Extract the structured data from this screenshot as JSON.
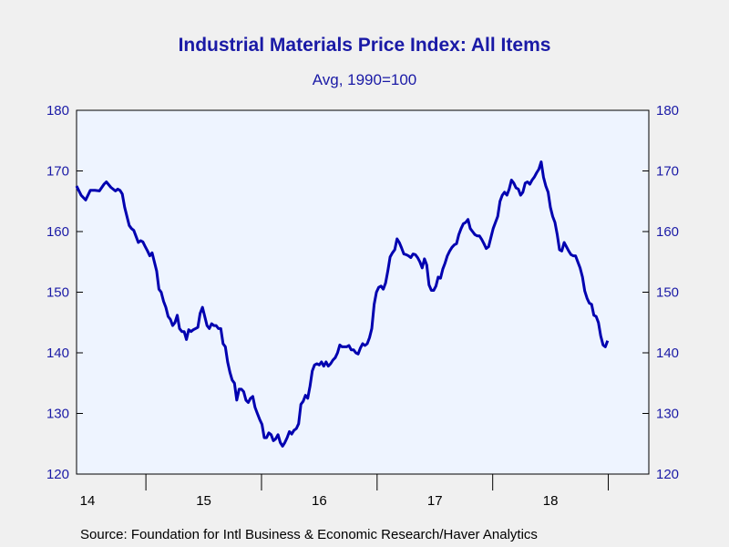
{
  "chart_data": {
    "type": "line",
    "title": "Industrial Materials Price Index: All Items",
    "subtitle": "Avg, 1990=100",
    "ylim": [
      120,
      180
    ],
    "yticks": [
      120,
      130,
      140,
      150,
      160,
      170,
      180
    ],
    "x_tick_labels": [
      "14",
      "15",
      "16",
      "17",
      "18"
    ],
    "xlim": [
      0,
      250
    ],
    "grid": false,
    "line_color": "#0000b0",
    "series": [
      {
        "values": [
          [
            0,
            167.5
          ],
          [
            2,
            166
          ],
          [
            4,
            165.2
          ],
          [
            6,
            166.8
          ],
          [
            8,
            166.8
          ],
          [
            10,
            166.7
          ],
          [
            12,
            167.8
          ],
          [
            13,
            168.2
          ],
          [
            15,
            167.3
          ],
          [
            17,
            166.7
          ],
          [
            18,
            167
          ],
          [
            19,
            166.8
          ],
          [
            20,
            166.2
          ],
          [
            21,
            164
          ],
          [
            22,
            162.5
          ],
          [
            23,
            161
          ],
          [
            24,
            160.5
          ],
          [
            25,
            160.2
          ],
          [
            26,
            159.2
          ],
          [
            27,
            158.2
          ],
          [
            28,
            158.5
          ],
          [
            29,
            158.3
          ],
          [
            30,
            157.5
          ],
          [
            31,
            156.8
          ],
          [
            32,
            156
          ],
          [
            33,
            156.5
          ],
          [
            34,
            155
          ],
          [
            35,
            153.5
          ],
          [
            36,
            150.5
          ],
          [
            37,
            150
          ],
          [
            38,
            148.5
          ],
          [
            39,
            147.5
          ],
          [
            40,
            146
          ],
          [
            41,
            145.5
          ],
          [
            42,
            144.5
          ],
          [
            43,
            145
          ],
          [
            44,
            146.2
          ],
          [
            45,
            144
          ],
          [
            46,
            143.5
          ],
          [
            47,
            143.5
          ],
          [
            48,
            142.2
          ],
          [
            49,
            143.8
          ],
          [
            50,
            143.5
          ],
          [
            51,
            143.8
          ],
          [
            52,
            144
          ],
          [
            53,
            144.2
          ],
          [
            54,
            146.5
          ],
          [
            55,
            147.5
          ],
          [
            56,
            146
          ],
          [
            57,
            144.5
          ],
          [
            58,
            144
          ],
          [
            59,
            144.8
          ],
          [
            60,
            144.5
          ],
          [
            61,
            144.5
          ],
          [
            62,
            144
          ],
          [
            63,
            144
          ],
          [
            64,
            141.5
          ],
          [
            65,
            141
          ],
          [
            66,
            138.5
          ],
          [
            67,
            136.8
          ],
          [
            68,
            135.5
          ],
          [
            69,
            135
          ],
          [
            70,
            132.2
          ],
          [
            71,
            134
          ],
          [
            72,
            134
          ],
          [
            73,
            133.6
          ],
          [
            74,
            132.2
          ],
          [
            75,
            131.8
          ],
          [
            76,
            132.5
          ],
          [
            77,
            132.8
          ],
          [
            78,
            131
          ],
          [
            79,
            130
          ],
          [
            80,
            129
          ],
          [
            81,
            128.2
          ],
          [
            82,
            126
          ],
          [
            83,
            126
          ],
          [
            84,
            126.8
          ],
          [
            85,
            126.5
          ],
          [
            86,
            125.5
          ],
          [
            87,
            125.8
          ],
          [
            88,
            126.5
          ],
          [
            89,
            125.2
          ],
          [
            90,
            124.6
          ],
          [
            91,
            125.2
          ],
          [
            92,
            126
          ],
          [
            93,
            127
          ],
          [
            94,
            126.6
          ],
          [
            95,
            127.2
          ],
          [
            96,
            127.5
          ],
          [
            97,
            128.3
          ],
          [
            98,
            131.5
          ],
          [
            99,
            132
          ],
          [
            100,
            133
          ],
          [
            101,
            132.5
          ],
          [
            102,
            134.5
          ],
          [
            103,
            137
          ],
          [
            104,
            138
          ],
          [
            105,
            138.2
          ],
          [
            106,
            138
          ],
          [
            107,
            138.5
          ],
          [
            108,
            137.8
          ],
          [
            109,
            138.5
          ],
          [
            110,
            137.8
          ],
          [
            111,
            138.2
          ],
          [
            112,
            138.8
          ],
          [
            113,
            139.2
          ],
          [
            114,
            140
          ],
          [
            115,
            141.3
          ],
          [
            116,
            141
          ],
          [
            117,
            141
          ],
          [
            118,
            141
          ],
          [
            119,
            141.2
          ],
          [
            120,
            140.5
          ],
          [
            121,
            140.5
          ],
          [
            122,
            140
          ],
          [
            123,
            139.8
          ],
          [
            124,
            140.8
          ],
          [
            125,
            141.5
          ],
          [
            126,
            141.2
          ],
          [
            127,
            141.5
          ],
          [
            128,
            142.5
          ],
          [
            129,
            144
          ],
          [
            130,
            148
          ],
          [
            131,
            150
          ],
          [
            132,
            150.8
          ],
          [
            133,
            151
          ],
          [
            134,
            150.5
          ],
          [
            135,
            151.5
          ],
          [
            136,
            153.5
          ],
          [
            137,
            155.8
          ],
          [
            138,
            156.5
          ],
          [
            139,
            157
          ],
          [
            140,
            158.8
          ],
          [
            141,
            158.2
          ],
          [
            142,
            157.3
          ],
          [
            143,
            156.3
          ],
          [
            144,
            156.2
          ],
          [
            145,
            156
          ],
          [
            146,
            155.7
          ],
          [
            147,
            156.3
          ],
          [
            148,
            156.2
          ],
          [
            149,
            155.7
          ],
          [
            150,
            155
          ],
          [
            151,
            154
          ],
          [
            152,
            155.5
          ],
          [
            153,
            154.5
          ],
          [
            154,
            151.2
          ],
          [
            155,
            150.3
          ],
          [
            156,
            150.3
          ],
          [
            157,
            151
          ],
          [
            158,
            152.5
          ],
          [
            159,
            152.3
          ],
          [
            160,
            153.8
          ],
          [
            161,
            154.8
          ],
          [
            162,
            156
          ],
          [
            163,
            156.8
          ],
          [
            164,
            157.4
          ],
          [
            165,
            157.8
          ],
          [
            166,
            158
          ],
          [
            167,
            159.5
          ],
          [
            168,
            160.5
          ],
          [
            169,
            161.3
          ],
          [
            170,
            161.5
          ],
          [
            171,
            162
          ],
          [
            172,
            160.5
          ],
          [
            173,
            160
          ],
          [
            174,
            159.5
          ],
          [
            175,
            159.3
          ],
          [
            176,
            159.3
          ],
          [
            177,
            158.7
          ],
          [
            178,
            158
          ],
          [
            179,
            157.2
          ],
          [
            180,
            157.5
          ],
          [
            181,
            159
          ],
          [
            182,
            160.5
          ],
          [
            183,
            161.5
          ],
          [
            184,
            162.5
          ],
          [
            185,
            165
          ],
          [
            186,
            166
          ],
          [
            187,
            166.5
          ],
          [
            188,
            166
          ],
          [
            189,
            167
          ],
          [
            190,
            168.5
          ],
          [
            191,
            168
          ],
          [
            192,
            167.2
          ],
          [
            193,
            167
          ],
          [
            194,
            166
          ],
          [
            195,
            166.5
          ],
          [
            196,
            168
          ],
          [
            197,
            168.2
          ],
          [
            198,
            167.8
          ],
          [
            199,
            168.5
          ],
          [
            200,
            169
          ],
          [
            201,
            169.7
          ],
          [
            202,
            170.3
          ],
          [
            203,
            171.5
          ],
          [
            204,
            169
          ],
          [
            205,
            167.5
          ],
          [
            206,
            166.5
          ],
          [
            207,
            164
          ],
          [
            208,
            162.5
          ],
          [
            209,
            161.5
          ],
          [
            210,
            159.5
          ],
          [
            211,
            157
          ],
          [
            212,
            156.8
          ],
          [
            213,
            158.2
          ],
          [
            214,
            157.5
          ],
          [
            215,
            156.8
          ],
          [
            216,
            156.2
          ],
          [
            217,
            156
          ],
          [
            218,
            156
          ],
          [
            219,
            155
          ],
          [
            220,
            154
          ],
          [
            221,
            152.5
          ],
          [
            222,
            150.2
          ],
          [
            223,
            149
          ],
          [
            224,
            148.2
          ],
          [
            225,
            148
          ],
          [
            226,
            146.2
          ],
          [
            227,
            146
          ],
          [
            228,
            145
          ],
          [
            229,
            142.8
          ],
          [
            230,
            141.3
          ],
          [
            231,
            141
          ],
          [
            232,
            142
          ]
        ]
      }
    ],
    "source": "Source:  Foundation for Intl Business & Economic Research/Haver Analytics"
  }
}
